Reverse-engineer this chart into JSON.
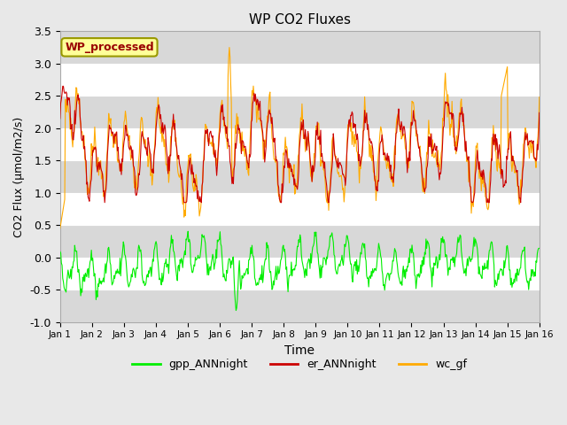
{
  "title": "WP CO2 Fluxes",
  "xlabel": "Time",
  "ylabel": "CO2 Flux (μmol/m2/s)",
  "ylim": [
    -1.0,
    3.5
  ],
  "xlim": [
    0,
    15
  ],
  "xtick_labels": [
    "Jan 1",
    "Jan 2",
    "Jan 3",
    "Jan 4",
    "Jan 5",
    "Jan 6",
    "Jan 7",
    "Jan 8",
    "Jan 9",
    "Jan 10",
    "Jan 11",
    "Jan 12",
    "Jan 13",
    "Jan 14",
    "Jan 15",
    "Jan 16"
  ],
  "ytick_vals": [
    -1.0,
    -0.5,
    0.0,
    0.5,
    1.0,
    1.5,
    2.0,
    2.5,
    3.0,
    3.5
  ],
  "bg_color": "#e8e8e8",
  "plot_bg_color": "#ffffff",
  "stripe_color": "#d8d8d8",
  "line_colors": {
    "gpp": "#00ee00",
    "er": "#cc0000",
    "wc": "#ffaa00"
  },
  "legend_label": "WP_processed",
  "legend_text_color": "#990000",
  "legend_box_color": "#ffff99",
  "n_points": 720,
  "seed": 12345
}
